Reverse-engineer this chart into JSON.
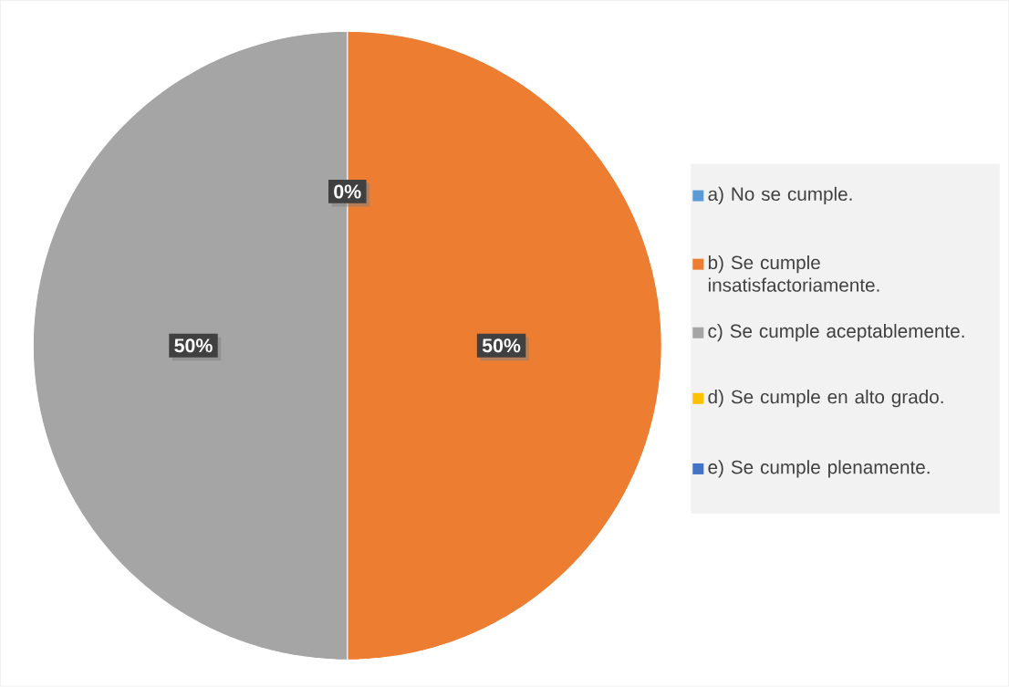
{
  "chart_data": {
    "type": "pie",
    "categories": [
      "a) No se cumple.",
      "b) Se cumple insatisfactoriamente.",
      "c) Se cumple aceptablemente.",
      "d) Se cumple en alto grado.",
      "e) Se cumple plenamente."
    ],
    "values": [
      0,
      50,
      50,
      0,
      0
    ],
    "colors": [
      "#5b9bd5",
      "#ed7d31",
      "#a5a5a5",
      "#ffc000",
      "#4472c4"
    ],
    "value_labels": [
      "0%",
      "50%",
      "50%",
      null,
      null
    ],
    "legend": "right"
  }
}
